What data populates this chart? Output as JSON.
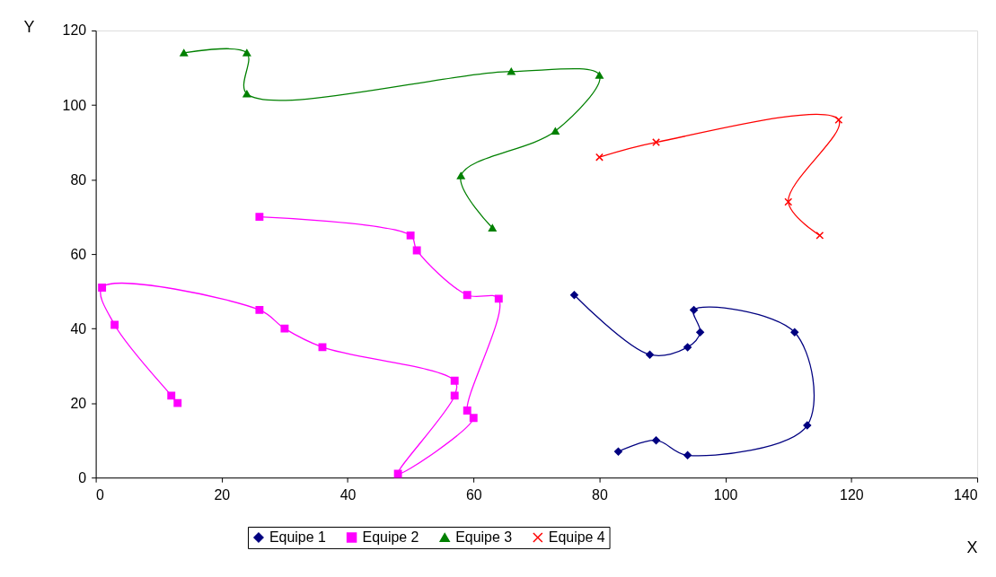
{
  "chart_data": {
    "type": "line",
    "xlabel": "X",
    "ylabel": "Y",
    "xlim": [
      0,
      140
    ],
    "xticks": [
      0,
      20,
      40,
      60,
      80,
      100,
      120,
      140
    ],
    "ylim": [
      0,
      120
    ],
    "yticks": [
      0,
      20,
      40,
      60,
      80,
      100,
      120
    ],
    "grid": false,
    "legend": "bottom",
    "series": [
      {
        "name": "Equipe 1",
        "color": "#000080",
        "marker": "diamond",
        "x": [
          83,
          89,
          94,
          113,
          111,
          95,
          96,
          94,
          88,
          76
        ],
        "values": [
          7,
          10,
          6,
          14,
          39,
          45,
          39,
          35,
          33,
          49
        ]
      },
      {
        "name": "Equipe 2",
        "color": "#ff00ff",
        "marker": "square",
        "x": [
          13,
          12,
          3,
          1,
          26,
          30,
          36,
          57,
          57,
          48,
          60,
          59,
          64,
          59,
          51,
          50,
          26
        ],
        "values": [
          20,
          22,
          41,
          51,
          45,
          40,
          35,
          26,
          22,
          1,
          16,
          18,
          48,
          49,
          61,
          65,
          70
        ]
      },
      {
        "name": "Equipe 3",
        "color": "#008000",
        "marker": "triangle",
        "x": [
          14,
          24,
          24,
          66,
          80,
          73,
          58,
          63
        ],
        "values": [
          114,
          114,
          103,
          109,
          108,
          93,
          81,
          67
        ]
      },
      {
        "name": "Equipe 4",
        "color": "#ff0000",
        "marker": "cross",
        "x": [
          80,
          89,
          118,
          110,
          115
        ],
        "values": [
          86,
          90,
          96,
          74,
          65
        ]
      }
    ]
  }
}
